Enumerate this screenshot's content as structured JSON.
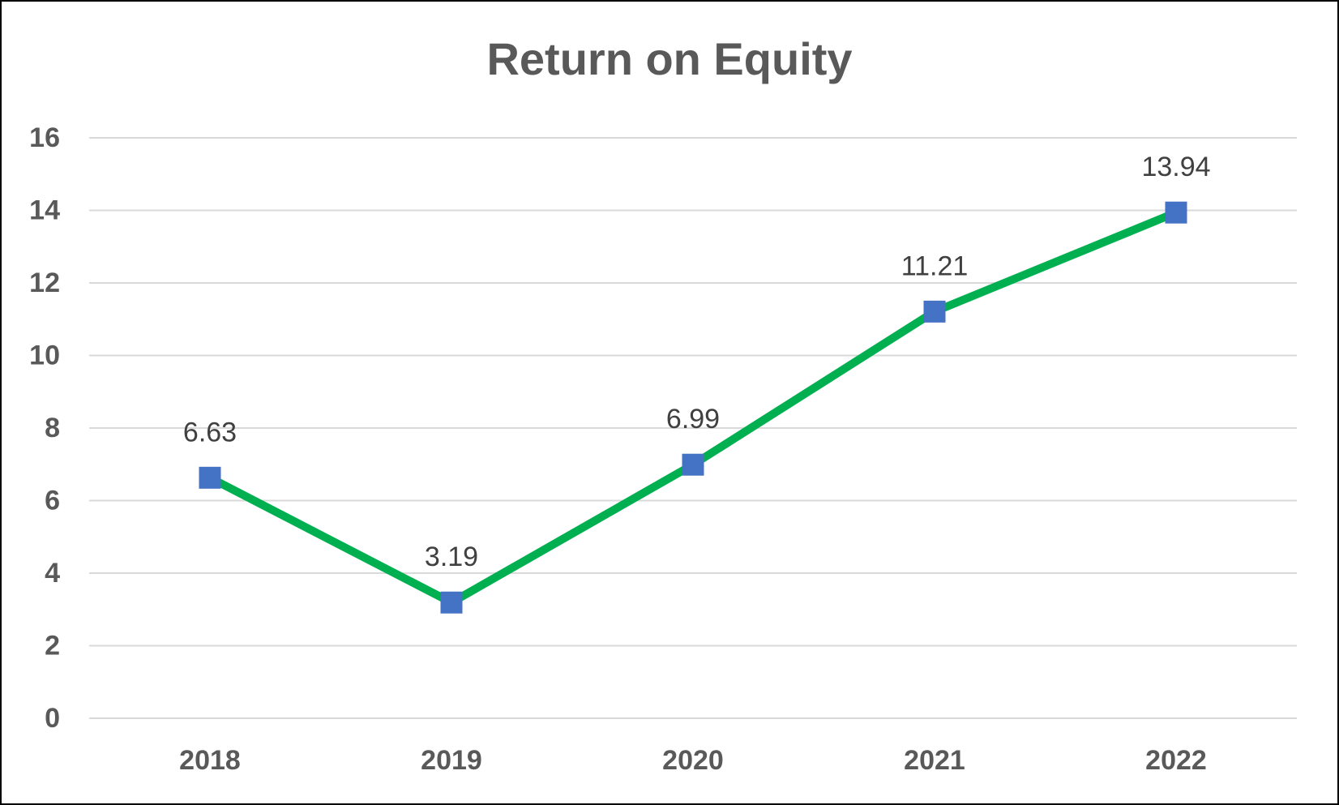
{
  "chart_data": {
    "type": "line",
    "title": "Return on Equity",
    "xlabel": "",
    "ylabel": "",
    "categories": [
      "2018",
      "2019",
      "2020",
      "2021",
      "2022"
    ],
    "series": [
      {
        "values": [
          6.63,
          3.19,
          6.99,
          11.21,
          13.94
        ],
        "data_labels": [
          "6.63",
          "3.19",
          "6.99",
          "11.21",
          "13.94"
        ]
      }
    ],
    "ylim": [
      0,
      16
    ],
    "yticks": [
      0,
      2,
      4,
      6,
      8,
      10,
      12,
      14,
      16
    ],
    "ytick_labels": [
      "0",
      "2",
      "4",
      "6",
      "8",
      "10",
      "12",
      "14",
      "16"
    ],
    "grid": true,
    "legend": "none",
    "marker": "square",
    "colors": {
      "line": "#00B050",
      "marker": "#4472C4",
      "gridline": "#D9D9D9",
      "axis_text": "#595959",
      "data_label_text": "#404040",
      "title_text": "#595959",
      "frame": "#000000"
    }
  }
}
